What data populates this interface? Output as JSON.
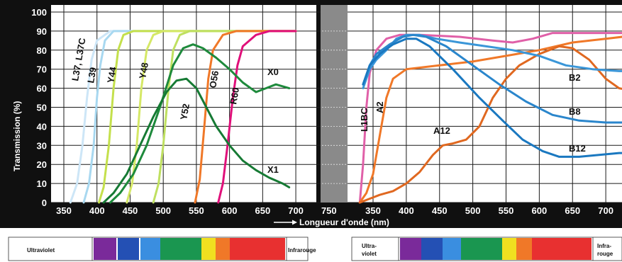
{
  "chart_data": [
    {
      "type": "line",
      "title": "",
      "xlabel": "Longueur d'onde (nm)",
      "ylabel": "Transmission (%)",
      "xlim": [
        330,
        770
      ],
      "ylim": [
        0,
        100
      ],
      "grid": true,
      "x_ticks": [
        "350",
        "400",
        "450",
        "500",
        "550",
        "600",
        "650",
        "700",
        "750"
      ],
      "y_ticks": [
        "0",
        "10",
        "20",
        "30",
        "40",
        "50",
        "60",
        "70",
        "80",
        "90",
        "100"
      ],
      "series": [
        {
          "name": "L37, L37C",
          "color": "#cde6f7",
          "points": [
            [
              360,
              0
            ],
            [
              370,
              10
            ],
            [
              378,
              30
            ],
            [
              385,
              55
            ],
            [
              392,
              75
            ],
            [
              400,
              85
            ],
            [
              420,
              90
            ],
            [
              700,
              90
            ]
          ]
        },
        {
          "name": "L39",
          "color": "#a8d8f0",
          "points": [
            [
              380,
              0
            ],
            [
              388,
              10
            ],
            [
              395,
              30
            ],
            [
              400,
              55
            ],
            [
              405,
              72
            ],
            [
              412,
              85
            ],
            [
              425,
              90
            ],
            [
              700,
              90
            ]
          ]
        },
        {
          "name": "Y44",
          "color": "#c4e04c",
          "points": [
            [
              403,
              0
            ],
            [
              410,
              8
            ],
            [
              418,
              30
            ],
            [
              425,
              60
            ],
            [
              432,
              80
            ],
            [
              440,
              88
            ],
            [
              455,
              90
            ],
            [
              700,
              90
            ]
          ]
        },
        {
          "name": "Y48",
          "color": "#d5e866",
          "points": [
            [
              445,
              0
            ],
            [
              453,
              10
            ],
            [
              460,
              30
            ],
            [
              467,
              60
            ],
            [
              475,
              80
            ],
            [
              485,
              88
            ],
            [
              500,
              90
            ],
            [
              700,
              90
            ]
          ]
        },
        {
          "name": "Y52",
          "color": "#bfe060",
          "points": [
            [
              485,
              0
            ],
            [
              493,
              10
            ],
            [
              500,
              30
            ],
            [
              508,
              60
            ],
            [
              515,
              80
            ],
            [
              525,
              88
            ],
            [
              540,
              90
            ],
            [
              700,
              90
            ]
          ]
        },
        {
          "name": "O56",
          "color": "#f07828",
          "points": [
            [
              548,
              0
            ],
            [
              555,
              12
            ],
            [
              562,
              40
            ],
            [
              568,
              65
            ],
            [
              575,
              80
            ],
            [
              590,
              88
            ],
            [
              610,
              90
            ],
            [
              700,
              90
            ]
          ]
        },
        {
          "name": "R60",
          "color": "#e0107a",
          "points": [
            [
              583,
              0
            ],
            [
              590,
              10
            ],
            [
              597,
              30
            ],
            [
              605,
              55
            ],
            [
              612,
              72
            ],
            [
              620,
              82
            ],
            [
              640,
              88
            ],
            [
              660,
              90
            ],
            [
              700,
              90
            ]
          ]
        },
        {
          "name": "X0",
          "color": "#1e8a3c",
          "points": [
            [
              420,
              0
            ],
            [
              435,
              5
            ],
            [
              455,
              15
            ],
            [
              475,
              30
            ],
            [
              495,
              50
            ],
            [
              515,
              72
            ],
            [
              530,
              81
            ],
            [
              545,
              83
            ],
            [
              560,
              81
            ],
            [
              580,
              76
            ],
            [
              600,
              70
            ],
            [
              620,
              63
            ],
            [
              640,
              58
            ],
            [
              655,
              60
            ],
            [
              670,
              62
            ],
            [
              690,
              60
            ]
          ]
        },
        {
          "name": "X1",
          "color": "#167a34",
          "points": [
            [
              410,
              0
            ],
            [
              425,
              5
            ],
            [
              445,
              15
            ],
            [
              465,
              30
            ],
            [
              485,
              45
            ],
            [
              505,
              58
            ],
            [
              520,
              64
            ],
            [
              535,
              65
            ],
            [
              550,
              60
            ],
            [
              565,
              50
            ],
            [
              580,
              40
            ],
            [
              600,
              30
            ],
            [
              620,
              22
            ],
            [
              640,
              17
            ],
            [
              660,
              13
            ],
            [
              680,
              10
            ],
            [
              690,
              8
            ]
          ]
        }
      ]
    },
    {
      "type": "line",
      "title": "",
      "xlabel": "",
      "ylabel": "",
      "xlim": [
        330,
        750
      ],
      "ylim": [
        0,
        100
      ],
      "grid": true,
      "x_ticks": [
        "350",
        "400",
        "450",
        "500",
        "550",
        "600",
        "650",
        "700"
      ],
      "series": [
        {
          "name": "L1BC",
          "color": "#e060a8",
          "points": [
            [
              330,
              0
            ],
            [
              335,
              20
            ],
            [
              340,
              50
            ],
            [
              345,
              68
            ],
            [
              355,
              80
            ],
            [
              370,
              86
            ],
            [
              390,
              88
            ],
            [
              420,
              88
            ],
            [
              480,
              87
            ],
            [
              530,
              85
            ],
            [
              560,
              84
            ],
            [
              590,
              86
            ],
            [
              620,
              89
            ],
            [
              680,
              89
            ],
            [
              750,
              89
            ]
          ]
        },
        {
          "name": "A2",
          "color": "#f07828",
          "points": [
            [
              330,
              0
            ],
            [
              340,
              5
            ],
            [
              350,
              15
            ],
            [
              360,
              35
            ],
            [
              370,
              55
            ],
            [
              380,
              65
            ],
            [
              400,
              70
            ],
            [
              450,
              72
            ],
            [
              500,
              74
            ],
            [
              550,
              77
            ],
            [
              600,
              80
            ],
            [
              650,
              84
            ],
            [
              700,
              86
            ],
            [
              750,
              88
            ]
          ]
        },
        {
          "name": "A12",
          "color": "#e06820",
          "points": [
            [
              330,
              0
            ],
            [
              345,
              2
            ],
            [
              360,
              4
            ],
            [
              380,
              6
            ],
            [
              400,
              10
            ],
            [
              420,
              16
            ],
            [
              440,
              25
            ],
            [
              455,
              30
            ],
            [
              470,
              31
            ],
            [
              490,
              33
            ],
            [
              510,
              40
            ],
            [
              530,
              55
            ],
            [
              550,
              65
            ],
            [
              570,
              72
            ],
            [
              600,
              78
            ],
            [
              630,
              82
            ],
            [
              650,
              81
            ],
            [
              675,
              75
            ],
            [
              700,
              65
            ],
            [
              720,
              60
            ],
            [
              750,
              58
            ]
          ]
        },
        {
          "name": "B2",
          "color": "#3a96d8",
          "points": [
            [
              335,
              60
            ],
            [
              345,
              70
            ],
            [
              355,
              75
            ],
            [
              370,
              80
            ],
            [
              385,
              86
            ],
            [
              400,
              88
            ],
            [
              420,
              88
            ],
            [
              445,
              86
            ],
            [
              480,
              84
            ],
            [
              520,
              82
            ],
            [
              560,
              80
            ],
            [
              600,
              77
            ],
            [
              640,
              72
            ],
            [
              680,
              70
            ],
            [
              720,
              69
            ],
            [
              750,
              69
            ]
          ]
        },
        {
          "name": "B8",
          "color": "#2a86cc",
          "points": [
            [
              335,
              62
            ],
            [
              345,
              72
            ],
            [
              355,
              78
            ],
            [
              375,
              83
            ],
            [
              395,
              87
            ],
            [
              410,
              88
            ],
            [
              430,
              87
            ],
            [
              460,
              82
            ],
            [
              500,
              72
            ],
            [
              540,
              62
            ],
            [
              580,
              53
            ],
            [
              620,
              46
            ],
            [
              660,
              43
            ],
            [
              700,
              42
            ],
            [
              750,
              42
            ]
          ]
        },
        {
          "name": "B12",
          "color": "#1a78c0",
          "points": [
            [
              335,
              62
            ],
            [
              345,
              72
            ],
            [
              360,
              78
            ],
            [
              380,
              83
            ],
            [
              400,
              86
            ],
            [
              415,
              86
            ],
            [
              435,
              82
            ],
            [
              470,
              70
            ],
            [
              510,
              55
            ],
            [
              545,
              43
            ],
            [
              575,
              33
            ],
            [
              605,
              27
            ],
            [
              630,
              24
            ],
            [
              660,
              24
            ],
            [
              690,
              25
            ],
            [
              720,
              26
            ],
            [
              750,
              26
            ]
          ]
        }
      ]
    }
  ],
  "labels": {
    "y_axis": "Transmission (%)",
    "x_axis": "Longueur d'onde (nm)",
    "left_ticks_x": [
      "350",
      "400",
      "450",
      "500",
      "550",
      "600",
      "650",
      "700",
      "750"
    ],
    "right_ticks_x": [
      "350",
      "400",
      "450",
      "500",
      "550",
      "600",
      "650",
      "700"
    ],
    "ticks_y": [
      "0",
      "10",
      "20",
      "30",
      "40",
      "50",
      "60",
      "70",
      "80",
      "90",
      "100"
    ],
    "left_curves": {
      "L37": "L37, L37C",
      "L39": "L39",
      "Y44": "Y44",
      "Y48": "Y48",
      "Y52": "Y52",
      "O56": "O56",
      "R60": "R60",
      "X0": "X0",
      "X1": "X1"
    },
    "right_curves": {
      "L1BC": "L1BC",
      "A2": "A2",
      "A12": "A12",
      "B2": "B2",
      "B8": "B8",
      "B12": "B12"
    }
  },
  "spectrum": {
    "left_uv": "Ultraviolet",
    "left_ir": "Infrarouge",
    "right_uv_1": "Ultra-",
    "right_uv_2": "violet",
    "right_ir_1": "Infra-",
    "right_ir_2": "rouge",
    "colors": [
      "#7a2a9a",
      "#2450b4",
      "#3a8ee0",
      "#1a9650",
      "#f0e020",
      "#f07828",
      "#e83030"
    ]
  }
}
